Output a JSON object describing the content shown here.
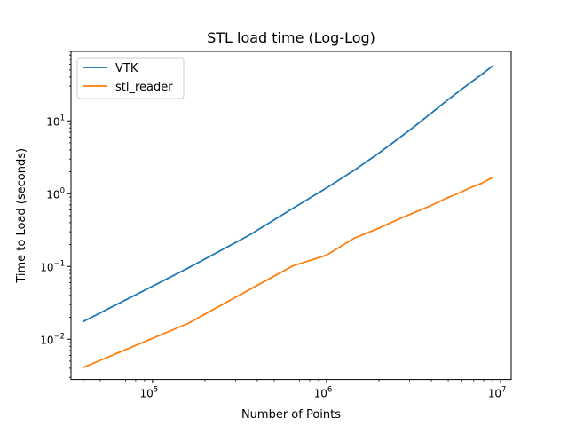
{
  "chart_data": {
    "type": "line",
    "title": "STL load time (Log-Log)",
    "xlabel": "Number of Points",
    "ylabel": "Time to Load (seconds)",
    "xscale": "log",
    "yscale": "log",
    "xlim": [
      34000,
      11500000
    ],
    "ylim": [
      0.0028,
      90
    ],
    "grid": false,
    "legend_position": "top-left",
    "x_ticks": [
      {
        "value": 100000,
        "base": "10",
        "exp": "5"
      },
      {
        "value": 1000000,
        "base": "10",
        "exp": "6"
      },
      {
        "value": 10000000,
        "base": "10",
        "exp": "7"
      }
    ],
    "y_ticks": [
      {
        "value": 0.01,
        "base": "10",
        "exp": "−2"
      },
      {
        "value": 0.1,
        "base": "10",
        "exp": "−1"
      },
      {
        "value": 1,
        "base": "10",
        "exp": "0"
      },
      {
        "value": 10,
        "base": "10",
        "exp": "1"
      }
    ],
    "series": [
      {
        "name": "VTK",
        "color": "#1f77b4",
        "x": [
          40000,
          160000,
          360000,
          640000,
          1000000,
          1440000,
          1960000,
          2560000,
          3240000,
          4000000,
          4840000,
          5760000,
          6760000,
          7840000,
          9000000
        ],
        "y": [
          0.0175,
          0.095,
          0.27,
          0.63,
          1.2,
          2.1,
          3.5,
          5.6,
          8.6,
          12.8,
          18.5,
          25.5,
          34,
          44,
          57
        ]
      },
      {
        "name": "stl_reader",
        "color": "#ff7f0e",
        "x": [
          40000,
          160000,
          360000,
          640000,
          1000000,
          1440000,
          1960000,
          2560000,
          3240000,
          4000000,
          4840000,
          5760000,
          6760000,
          7840000,
          9000000
        ],
        "y": [
          0.0041,
          0.0165,
          0.048,
          0.102,
          0.143,
          0.245,
          0.33,
          0.44,
          0.56,
          0.69,
          0.86,
          1.02,
          1.22,
          1.4,
          1.68
        ]
      }
    ]
  }
}
